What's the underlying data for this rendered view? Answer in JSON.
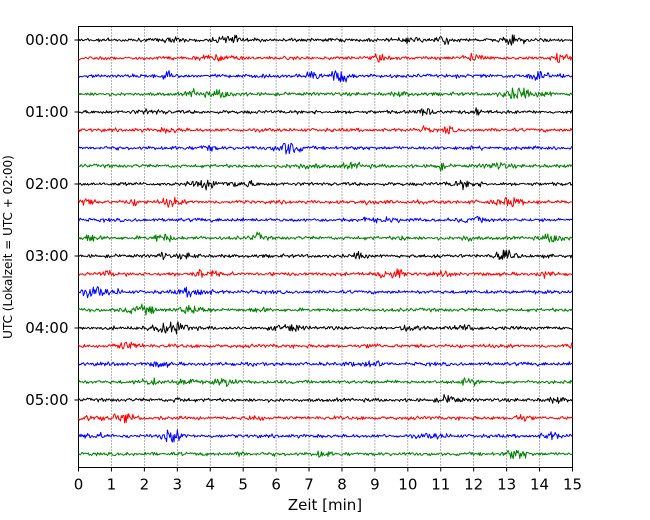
{
  "chart_data": {
    "type": "line",
    "subtype": "helicorder",
    "title": "",
    "xlabel": "Zeit  [min]",
    "ylabel": "UTC (Lokalzeit = UTC + 02:00)",
    "xlim": [
      0,
      15
    ],
    "x_ticks": [
      "0",
      "1",
      "2",
      "3",
      "4",
      "5",
      "6",
      "7",
      "8",
      "9",
      "10",
      "11",
      "12",
      "13",
      "14",
      "15"
    ],
    "y_tick_labels": [
      "00:00",
      "01:00",
      "02:00",
      "03:00",
      "04:00",
      "05:00"
    ],
    "trace_count": 24,
    "trace_interval_minutes": 15,
    "trace_colors": [
      "#000000",
      "#ff0000",
      "#0000ff",
      "#008000"
    ],
    "grid": {
      "x": true,
      "style": "dotted"
    },
    "legend": "none"
  }
}
